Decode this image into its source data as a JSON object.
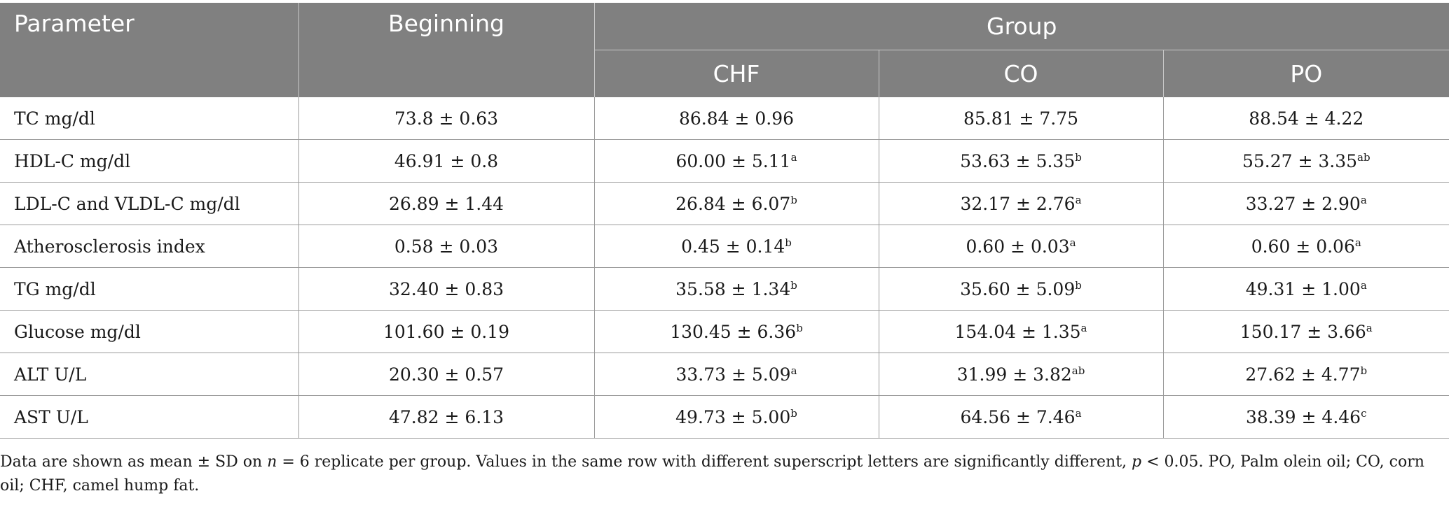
{
  "table": {
    "headers": {
      "parameter": "Parameter",
      "beginning": "Beginning",
      "group": "Group",
      "subgroups": [
        "CHF",
        "CO",
        "PO"
      ]
    },
    "rows": [
      {
        "label": "TC mg/dl",
        "beginning": "73.8 ± 0.63",
        "chf": "86.84 ± 0.96",
        "chf_sup": "",
        "co": "85.81 ± 7.75",
        "co_sup": "",
        "po": "88.54 ± 4.22",
        "po_sup": ""
      },
      {
        "label": "HDL-C mg/dl",
        "beginning": "46.91 ± 0.8",
        "chf": "60.00 ± 5.11",
        "chf_sup": "a",
        "co": "53.63 ± 5.35",
        "co_sup": "b",
        "po": "55.27 ± 3.35",
        "po_sup": "ab"
      },
      {
        "label": "LDL-C and VLDL-C mg/dl",
        "beginning": "26.89 ± 1.44",
        "chf": "26.84 ± 6.07",
        "chf_sup": "b",
        "co": "32.17 ± 2.76",
        "co_sup": "a",
        "po": "33.27 ± 2.90",
        "po_sup": "a"
      },
      {
        "label": "Atherosclerosis index",
        "beginning": "0.58 ± 0.03",
        "chf": "0.45 ± 0.14",
        "chf_sup": "b",
        "co": "0.60 ± 0.03",
        "co_sup": "a",
        "po": "0.60 ± 0.06",
        "po_sup": "a"
      },
      {
        "label": "TG mg/dl",
        "beginning": "32.40 ± 0.83",
        "chf": "35.58 ± 1.34",
        "chf_sup": "b",
        "co": "35.60 ± 5.09",
        "co_sup": "b",
        "po": "49.31 ± 1.00",
        "po_sup": "a"
      },
      {
        "label": "Glucose mg/dl",
        "beginning": "101.60 ± 0.19",
        "chf": "130.45 ± 6.36",
        "chf_sup": "b",
        "co": "154.04 ± 1.35",
        "co_sup": "a",
        "po": "150.17 ± 3.66",
        "po_sup": "a"
      },
      {
        "label": "ALT U/L",
        "beginning": "20.30 ± 0.57",
        "chf": "33.73 ± 5.09",
        "chf_sup": "a",
        "co": "31.99 ± 3.82",
        "co_sup": "ab",
        "po": "27.62 ± 4.77",
        "po_sup": "b"
      },
      {
        "label": "AST U/L",
        "beginning": "47.82 ± 6.13",
        "chf": "49.73 ± 5.00",
        "chf_sup": "b",
        "co": "64.56 ± 7.46",
        "co_sup": "a",
        "po": "38.39 ± 4.46",
        "po_sup": "c"
      }
    ]
  },
  "footnote": {
    "part1": "Data are shown as mean ± SD on ",
    "n_symbol": "n",
    "part2": " = 6 replicate per group. Values in the same row with different superscript letters are significantly different, ",
    "p_symbol": "p",
    "part3": " < 0.05. PO, Palm olein oil; CO, corn oil; CHF, camel hump fat."
  },
  "colors": {
    "header_bg": "#808080",
    "header_text": "#ffffff",
    "body_text": "#1a1a1a",
    "rule": "#9a9a9a"
  }
}
